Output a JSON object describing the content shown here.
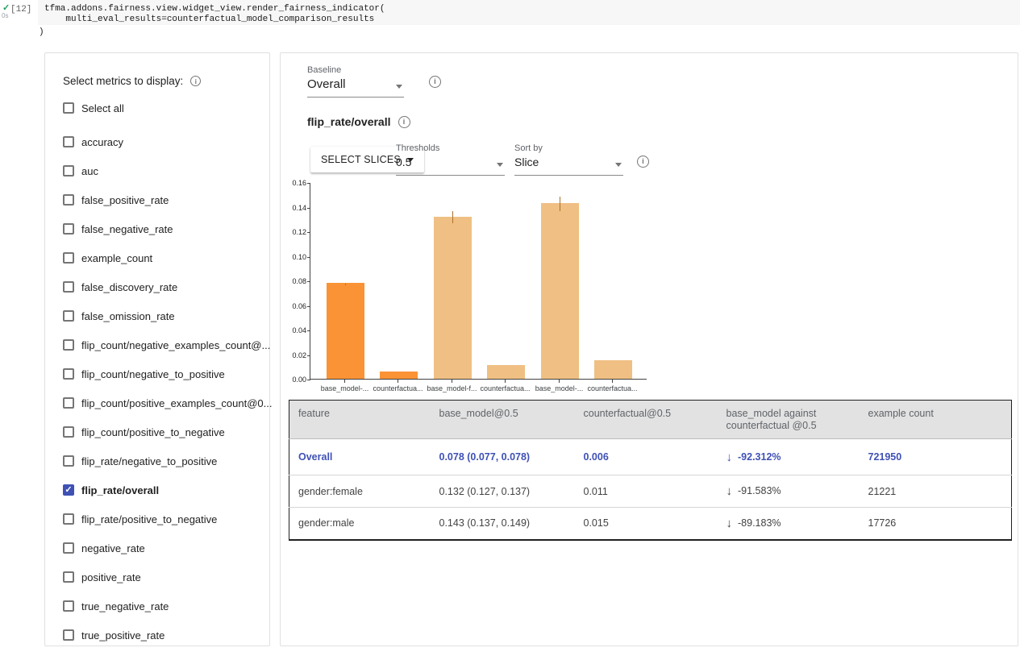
{
  "icons": {
    "check": "✓",
    "info": "i",
    "dropdown_arrow": "▾",
    "arrow_down": "↓"
  },
  "colors": {
    "accent_indigo": "#3f51b5",
    "bar_primary": "#fa9335",
    "bar_secondary": "#f0bf83",
    "error_bar": "#a9712e",
    "check_green": "#1e9e5a"
  },
  "notebook_cell": {
    "execution_count": "[12]",
    "execution_time": "0s",
    "code_lines": [
      "tfma.addons.fairness.view.widget_view.render_fairness_indicator(",
      "    multi_eval_results=counterfactual_model_comparison_results",
      ")"
    ]
  },
  "metrics_panel": {
    "title": "Select metrics to display:",
    "items": [
      {
        "label": "Select all",
        "checked": false
      },
      {
        "label": "accuracy",
        "checked": false
      },
      {
        "label": "auc",
        "checked": false
      },
      {
        "label": "false_positive_rate",
        "checked": false
      },
      {
        "label": "false_negative_rate",
        "checked": false
      },
      {
        "label": "example_count",
        "checked": false
      },
      {
        "label": "false_discovery_rate",
        "checked": false
      },
      {
        "label": "false_omission_rate",
        "checked": false
      },
      {
        "label": "flip_count/negative_examples_count@...",
        "checked": false
      },
      {
        "label": "flip_count/negative_to_positive",
        "checked": false
      },
      {
        "label": "flip_count/positive_examples_count@0...",
        "checked": false
      },
      {
        "label": "flip_count/positive_to_negative",
        "checked": false
      },
      {
        "label": "flip_rate/negative_to_positive",
        "checked": false
      },
      {
        "label": "flip_rate/overall",
        "checked": true
      },
      {
        "label": "flip_rate/positive_to_negative",
        "checked": false
      },
      {
        "label": "negative_rate",
        "checked": false
      },
      {
        "label": "positive_rate",
        "checked": false
      },
      {
        "label": "true_negative_rate",
        "checked": false
      },
      {
        "label": "true_positive_rate",
        "checked": false
      }
    ]
  },
  "main_panel": {
    "baseline": {
      "label": "Baseline",
      "value": "Overall"
    },
    "metric_header": "flip_rate/overall",
    "select_slices_button": "SELECT SLICES",
    "thresholds": {
      "label": "Thresholds",
      "value": "0.5"
    },
    "sort_by": {
      "label": "Sort by",
      "value": "Slice"
    }
  },
  "chart_data": {
    "type": "bar",
    "title": "flip_rate/overall",
    "categories": [
      "base_model-...",
      "counterfactua...",
      "base_model-f...",
      "counterfactua...",
      "base_model-...",
      "counterfactua..."
    ],
    "values": [
      0.078,
      0.006,
      0.132,
      0.011,
      0.143,
      0.015
    ],
    "error_bars": [
      [
        0.077,
        0.078
      ],
      null,
      [
        0.127,
        0.137
      ],
      null,
      [
        0.137,
        0.149
      ],
      null
    ],
    "bar_colors": [
      "#fa9335",
      "#fa9335",
      "#f0bf83",
      "#f0bf83",
      "#f0bf83",
      "#f0bf83"
    ],
    "xlabel": "",
    "ylabel": "",
    "ylim": [
      0,
      0.16
    ],
    "yticks": [
      0,
      0.02,
      0.04,
      0.06,
      0.08,
      0.1,
      0.12,
      0.14,
      0.16
    ],
    "grid": false,
    "legend": "none"
  },
  "table": {
    "headers": [
      "feature",
      "base_model@0.5",
      "counterfactual@0.5",
      "base_model against counterfactual @0.5",
      "example count"
    ],
    "rows": [
      {
        "feature": "Overall",
        "base_model": "0.078 (0.077, 0.078)",
        "counterfactual": "0.006",
        "against": "-92.312%",
        "example_count": "721950",
        "highlight": true
      },
      {
        "feature": "gender:female",
        "base_model": "0.132 (0.127, 0.137)",
        "counterfactual": "0.011",
        "against": "-91.583%",
        "example_count": "21221",
        "highlight": false
      },
      {
        "feature": "gender:male",
        "base_model": "0.143 (0.137, 0.149)",
        "counterfactual": "0.015",
        "against": "-89.183%",
        "example_count": "17726",
        "highlight": false
      }
    ]
  }
}
